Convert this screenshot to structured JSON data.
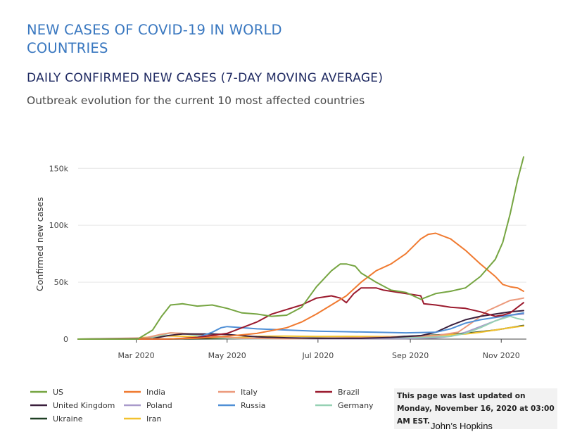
{
  "page": {
    "title": "NEW CASES OF COVID-19 IN WORLD COUNTRIES",
    "notice": "This page was last updated on Monday, November 16, 2020 at 03:00 AM EST.",
    "credit": "John’s Hopkins"
  },
  "chart_data": {
    "type": "line",
    "title": "DAILY CONFIRMED NEW CASES (7-DAY MOVING AVERAGE)",
    "subtitle": "Outbreak evolution for the current 10 most affected countries",
    "ylabel": "Confirmed new cases",
    "xlabel": "",
    "x_unit": "days since 2020-01-22",
    "xlim": [
      0,
      299
    ],
    "ylim": [
      0,
      165000
    ],
    "x_ticks": [
      {
        "label": "Mar 2020",
        "value": 39
      },
      {
        "label": "May 2020",
        "value": 100
      },
      {
        "label": "Jul 2020",
        "value": 161
      },
      {
        "label": "Sep 2020",
        "value": 223
      },
      {
        "label": "Nov 2020",
        "value": 284
      }
    ],
    "y_ticks": [
      {
        "label": "0",
        "value": 0
      },
      {
        "label": "50k",
        "value": 50000
      },
      {
        "label": "100k",
        "value": 100000
      },
      {
        "label": "150k",
        "value": 150000
      }
    ],
    "series": [
      {
        "name": "US",
        "color": "#76a542",
        "x": [
          0,
          40,
          50,
          56,
          62,
          70,
          80,
          90,
          100,
          110,
          120,
          130,
          140,
          150,
          160,
          170,
          176,
          180,
          186,
          190,
          200,
          210,
          215,
          220,
          230,
          240,
          250,
          260,
          270,
          280,
          285,
          290,
          295,
          299
        ],
        "y": [
          0,
          0,
          8000,
          20000,
          30000,
          31000,
          29000,
          30000,
          27000,
          23000,
          22000,
          20000,
          21000,
          28000,
          46000,
          60000,
          66000,
          66000,
          64000,
          58000,
          50000,
          43000,
          42000,
          41000,
          35000,
          40000,
          42000,
          45000,
          55000,
          70000,
          85000,
          110000,
          140000,
          160000
        ]
      },
      {
        "name": "India",
        "color": "#f07a30",
        "x": [
          0,
          60,
          80,
          100,
          120,
          140,
          150,
          160,
          170,
          180,
          190,
          200,
          210,
          220,
          230,
          235,
          240,
          250,
          260,
          270,
          280,
          285,
          290,
          295,
          299
        ],
        "y": [
          0,
          200,
          800,
          2500,
          5000,
          10000,
          15000,
          22000,
          30000,
          38000,
          50000,
          60000,
          66000,
          75000,
          88000,
          92000,
          93000,
          88000,
          78000,
          66000,
          55000,
          48000,
          46000,
          45000,
          42000
        ]
      },
      {
        "name": "Italy",
        "color": "#ec9a7c",
        "x": [
          0,
          45,
          55,
          62,
          70,
          80,
          90,
          100,
          110,
          140,
          200,
          240,
          255,
          265,
          275,
          285,
          290,
          295,
          299
        ],
        "y": [
          0,
          1000,
          4000,
          5500,
          5000,
          4200,
          2800,
          1500,
          800,
          300,
          1500,
          3000,
          6000,
          15000,
          25000,
          31000,
          34000,
          35000,
          36000
        ]
      },
      {
        "name": "Brazil",
        "color": "#9b1a2e",
        "x": [
          0,
          60,
          80,
          100,
          110,
          120,
          130,
          140,
          150,
          160,
          170,
          176,
          180,
          185,
          190,
          200,
          205,
          210,
          220,
          230,
          232,
          240,
          250,
          260,
          270,
          280,
          285,
          290,
          295,
          299
        ],
        "y": [
          0,
          0,
          1500,
          5000,
          10000,
          15000,
          22000,
          26000,
          30000,
          36000,
          38000,
          36000,
          32000,
          40000,
          45000,
          45000,
          43000,
          42000,
          40000,
          38000,
          31000,
          30000,
          28000,
          27000,
          24000,
          20000,
          21000,
          23000,
          28000,
          32000
        ]
      },
      {
        "name": "United Kingdom",
        "color": "#3a1f3c",
        "x": [
          0,
          50,
          60,
          70,
          80,
          90,
          100,
          110,
          120,
          140,
          160,
          190,
          210,
          230,
          240,
          250,
          260,
          270,
          280,
          290,
          299
        ],
        "y": [
          0,
          500,
          3000,
          4500,
          4500,
          4500,
          4000,
          3000,
          2000,
          1200,
          700,
          700,
          1500,
          3000,
          6000,
          12000,
          17000,
          20000,
          22000,
          24000,
          25000
        ]
      },
      {
        "name": "Poland",
        "color": "#a99acb",
        "x": [
          0,
          60,
          100,
          140,
          180,
          220,
          240,
          250,
          260,
          270,
          280,
          290,
          299
        ],
        "y": [
          0,
          200,
          300,
          350,
          400,
          500,
          1000,
          2500,
          6000,
          11000,
          16000,
          21000,
          22000
        ]
      },
      {
        "name": "Russia",
        "color": "#4f8fd6",
        "x": [
          0,
          60,
          70,
          80,
          90,
          96,
          100,
          110,
          120,
          140,
          160,
          180,
          200,
          220,
          240,
          250,
          260,
          270,
          280,
          290,
          299
        ],
        "y": [
          0,
          100,
          500,
          1500,
          6000,
          10000,
          11000,
          10000,
          9000,
          8000,
          7000,
          6500,
          6000,
          5500,
          6000,
          9000,
          14000,
          17000,
          19000,
          21000,
          23000
        ]
      },
      {
        "name": "Germany",
        "color": "#96d1b4",
        "x": [
          0,
          45,
          55,
          62,
          70,
          80,
          90,
          100,
          110,
          140,
          200,
          230,
          250,
          260,
          270,
          280,
          290,
          295,
          299
        ],
        "y": [
          0,
          500,
          3000,
          5500,
          5000,
          3000,
          1500,
          800,
          500,
          400,
          1200,
          1500,
          2500,
          5000,
          10000,
          16000,
          20000,
          18000,
          17000
        ]
      },
      {
        "name": "Ukraine",
        "color": "#1f3f24",
        "x": [
          0,
          60,
          100,
          140,
          180,
          200,
          220,
          240,
          260,
          280,
          290,
          299
        ],
        "y": [
          0,
          50,
          400,
          800,
          1000,
          1500,
          2500,
          3500,
          5000,
          8000,
          10000,
          12000
        ]
      },
      {
        "name": "Iran",
        "color": "#f2c12e",
        "x": [
          0,
          35,
          45,
          55,
          60,
          70,
          80,
          90,
          100,
          110,
          120,
          140,
          160,
          180,
          200,
          220,
          240,
          260,
          270,
          280,
          290,
          299
        ],
        "y": [
          0,
          200,
          1500,
          2500,
          2800,
          2500,
          1800,
          1200,
          1000,
          1500,
          2500,
          2600,
          2300,
          2400,
          2200,
          2100,
          3200,
          4500,
          6000,
          8000,
          10000,
          11500
        ]
      }
    ]
  }
}
